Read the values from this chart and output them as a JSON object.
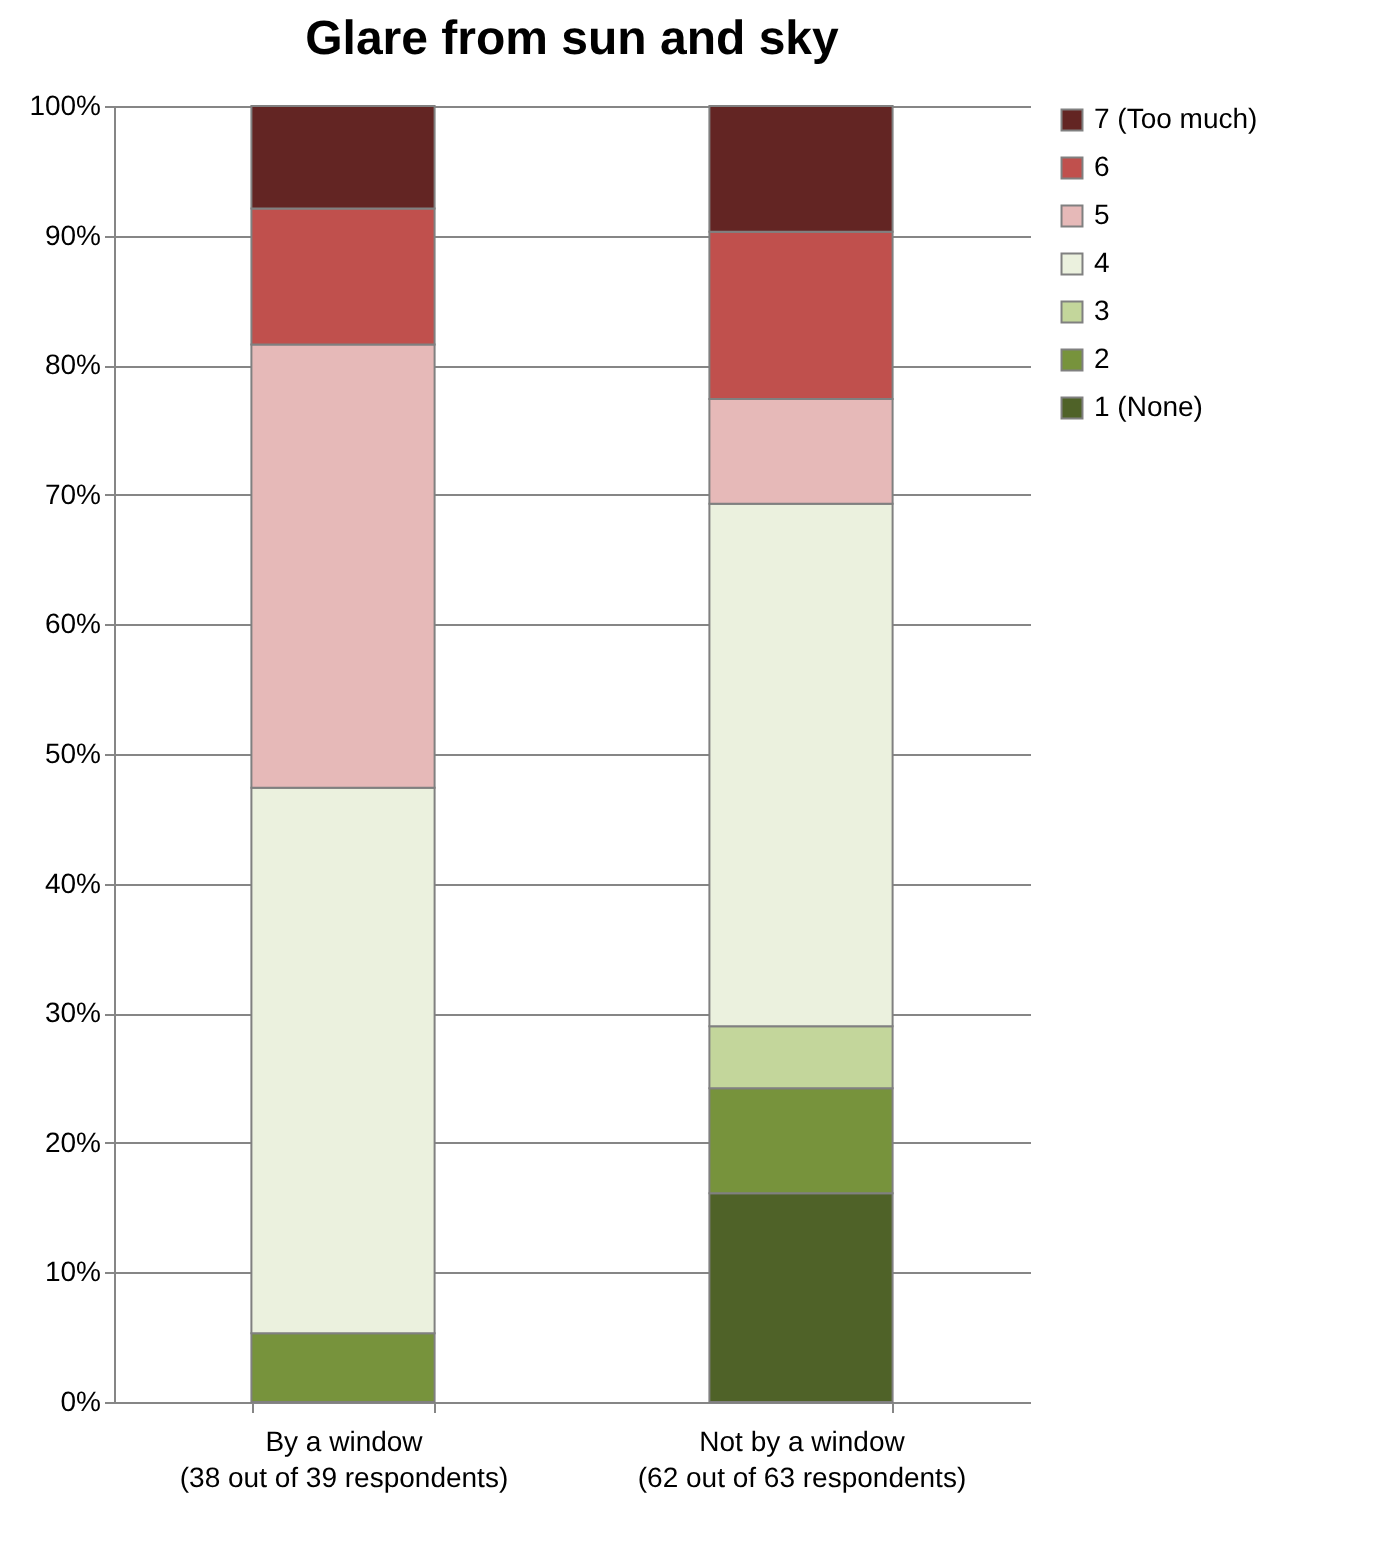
{
  "chart_data": {
    "type": "bar",
    "title": "Glare from sun and sky",
    "categories": [
      "By a window\n(38 out of 39 respondents)",
      "Not by a window\n(62 out of 63 respondents)"
    ],
    "stacked": true,
    "series": [
      {
        "name": "1 (None)",
        "color": "#4f6228",
        "values": [
          null,
          16.1
        ]
      },
      {
        "name": "2",
        "color": "#77933c",
        "values": [
          5.3,
          8.1
        ]
      },
      {
        "name": "3",
        "color": "#c3d69b",
        "values": [
          null,
          4.8
        ]
      },
      {
        "name": "4",
        "color": "#ebf1de",
        "values": [
          42.1,
          40.3
        ]
      },
      {
        "name": "5",
        "color": "#e6b9b8",
        "values": [
          34.2,
          8.1
        ]
      },
      {
        "name": "6",
        "color": "#c0504d",
        "values": [
          10.5,
          12.9
        ]
      },
      {
        "name": "7 (Too much)",
        "color": "#632523",
        "values": [
          7.9,
          9.7
        ]
      }
    ],
    "ylim": [
      0,
      100
    ],
    "yticks": [
      {
        "value": 0,
        "label": "0%"
      },
      {
        "value": 10,
        "label": "10%"
      },
      {
        "value": 20,
        "label": "20%"
      },
      {
        "value": 30,
        "label": "30%"
      },
      {
        "value": 40,
        "label": "40%"
      },
      {
        "value": 50,
        "label": "50%"
      },
      {
        "value": 60,
        "label": "60%"
      },
      {
        "value": 70,
        "label": "70%"
      },
      {
        "value": 80,
        "label": "80%"
      },
      {
        "value": 90,
        "label": "90%"
      },
      {
        "value": 100,
        "label": "100%"
      }
    ],
    "grid": "y",
    "legend": "right"
  }
}
